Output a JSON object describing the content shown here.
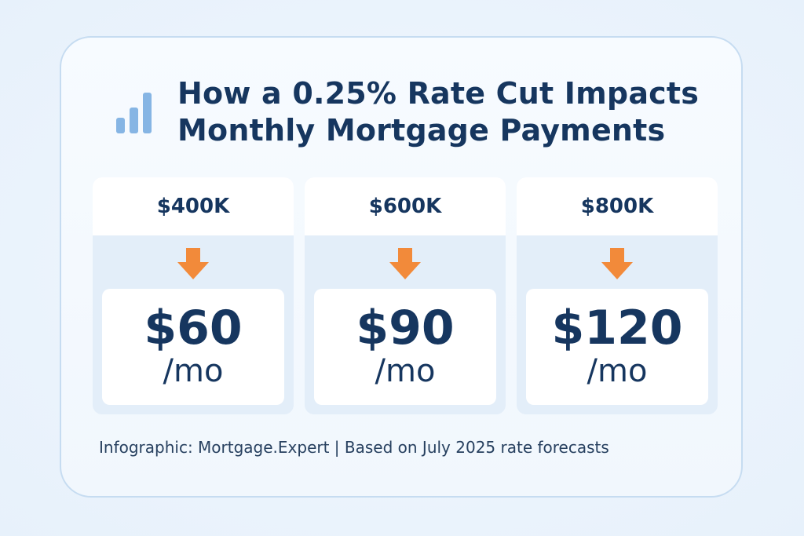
{
  "title": {
    "line1": "How a 0.25% Rate Cut Impacts",
    "line2": "Monthly Mortgage Payments"
  },
  "icons": {
    "header": "bar-chart-icon",
    "tier_arrow": "arrow-down-icon"
  },
  "colors": {
    "title": "#16365f",
    "arrow": "#f28a3a",
    "bars": "#86b5e4"
  },
  "tiers": [
    {
      "loan": "$400K",
      "savings": "$60",
      "unit": "/mo"
    },
    {
      "loan": "$600K",
      "savings": "$90",
      "unit": "/mo"
    },
    {
      "loan": "$800K",
      "savings": "$120",
      "unit": "/mo"
    }
  ],
  "footer": "Infographic: Mortgage.Expert | Based on July 2025 rate forecasts"
}
